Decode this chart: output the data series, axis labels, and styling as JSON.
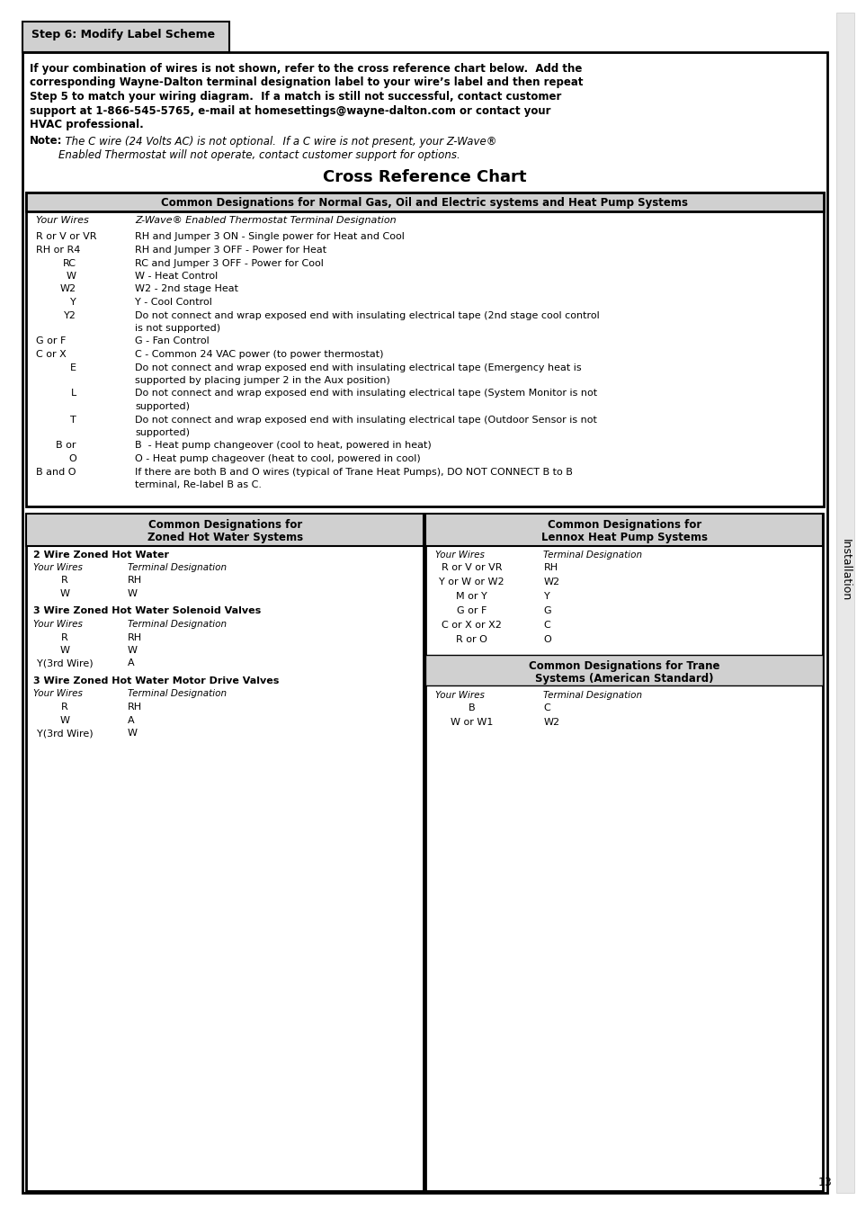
{
  "page_bg": "#ffffff",
  "step_box_text": "Step 6: Modify Label Scheme",
  "step_box_bg": "#d0d0d0",
  "intro_lines": [
    "If your combination of wires is not shown, refer to the cross reference chart below.  Add the",
    "corresponding Wayne-Dalton terminal designation label to your wire’s label and then repeat",
    "Step 5 to match your wiring diagram.  If a match is still not successful, contact customer",
    "support at 1-866-545-5765, e-mail at homesettings@wayne-dalton.com or contact your",
    "HVAC professional."
  ],
  "note_label": "Note:",
  "note_line1": "  The C wire (24 Volts AC) is not optional.  If a C wire is not present, your Z-Wave®",
  "note_line2": "Enabled Thermostat will not operate, contact customer support for options.",
  "chart_title": "Cross Reference Chart",
  "s1_header": "Common Designations for Normal Gas, Oil and Electric systems and Heat Pump Systems",
  "s1_col1": "Your Wires",
  "s1_col2": "Z-Wave® Enabled Thermostat Terminal Designation",
  "s1_rows": [
    [
      "R or V or VR",
      "RH and Jumper 3 ON - Single power for Heat and Cool",
      false
    ],
    [
      "RH or R4",
      "RH and Jumper 3 OFF - Power for Heat",
      false
    ],
    [
      "RC",
      "RC and Jumper 3 OFF - Power for Cool",
      false
    ],
    [
      "W",
      "W - Heat Control",
      false
    ],
    [
      "W2",
      "W2 - 2nd stage Heat",
      false
    ],
    [
      "Y",
      "Y - Cool Control",
      false
    ],
    [
      "Y2",
      "Do not connect and wrap exposed end with insulating electrical tape (2nd stage cool control",
      true
    ],
    [
      "",
      "is not supported)",
      false
    ],
    [
      "G or F",
      "G - Fan Control",
      false
    ],
    [
      "C or X",
      "C - Common 24 VAC power (to power thermostat)",
      false
    ],
    [
      "E",
      "Do not connect and wrap exposed end with insulating electrical tape (Emergency heat is",
      true
    ],
    [
      "",
      "supported by placing jumper 2 in the Aux position)",
      false
    ],
    [
      "L",
      "Do not connect and wrap exposed end with insulating electrical tape (System Monitor is not",
      true
    ],
    [
      "",
      "supported)",
      false
    ],
    [
      "T",
      "Do not connect and wrap exposed end with insulating electrical tape (Outdoor Sensor is not",
      true
    ],
    [
      "",
      "supported)",
      false
    ],
    [
      "B or",
      "B  - Heat pump changeover (cool to heat, powered in heat)",
      false
    ],
    [
      "O",
      "O - Heat pump chageover (heat to cool, powered in cool)",
      false
    ],
    [
      "B and O",
      "If there are both B and O wires (typical of Trane Heat Pumps), DO NOT CONNECT B to B",
      true
    ],
    [
      "",
      "terminal, Re-label B as C.",
      false
    ]
  ],
  "s2_header1": "Common Designations for",
  "s2_header2": "Zoned Hot Water Systems",
  "s2_sub1_title": "2 Wire Zoned Hot Water",
  "s2_sub1_col1": "Your Wires",
  "s2_sub1_col2": "Terminal Designation",
  "s2_sub1_rows": [
    [
      "R",
      "RH"
    ],
    [
      "W",
      "W"
    ]
  ],
  "s2_sub2_title": "3 Wire Zoned Hot Water Solenoid Valves",
  "s2_sub2_col1": "Your Wires",
  "s2_sub2_col2": "Terminal Designation",
  "s2_sub2_rows": [
    [
      "R",
      "RH"
    ],
    [
      "W",
      "W"
    ],
    [
      "Y(3rd Wire)",
      "A"
    ]
  ],
  "s2_sub3_title": "3 Wire Zoned Hot Water Motor Drive Valves",
  "s2_sub3_col1": "Your Wires",
  "s2_sub3_col2": "Terminal Designation",
  "s2_sub3_rows": [
    [
      "R",
      "RH"
    ],
    [
      "W",
      "A"
    ],
    [
      "Y(3rd Wire)",
      "W"
    ]
  ],
  "s3_header1": "Common Designations for",
  "s3_header2": "Lennox Heat Pump Systems",
  "s3_col1": "Your Wires",
  "s3_col2": "Terminal Designation",
  "s3_rows": [
    [
      "R or V or VR",
      "RH"
    ],
    [
      "Y or W or W2",
      "W2"
    ],
    [
      "M or Y",
      "Y"
    ],
    [
      "G or F",
      "G"
    ],
    [
      "C or X or X2",
      "C"
    ],
    [
      "R or O",
      "O"
    ]
  ],
  "s4_header1": "Common Designations for Trane",
  "s4_header2": "Systems (American Standard)",
  "s4_col1": "Your Wires",
  "s4_col2": "Terminal Designation",
  "s4_rows": [
    [
      "B",
      "C"
    ],
    [
      "W or W1",
      "W2"
    ]
  ],
  "sidebar_text": "Installation",
  "page_number": "13"
}
